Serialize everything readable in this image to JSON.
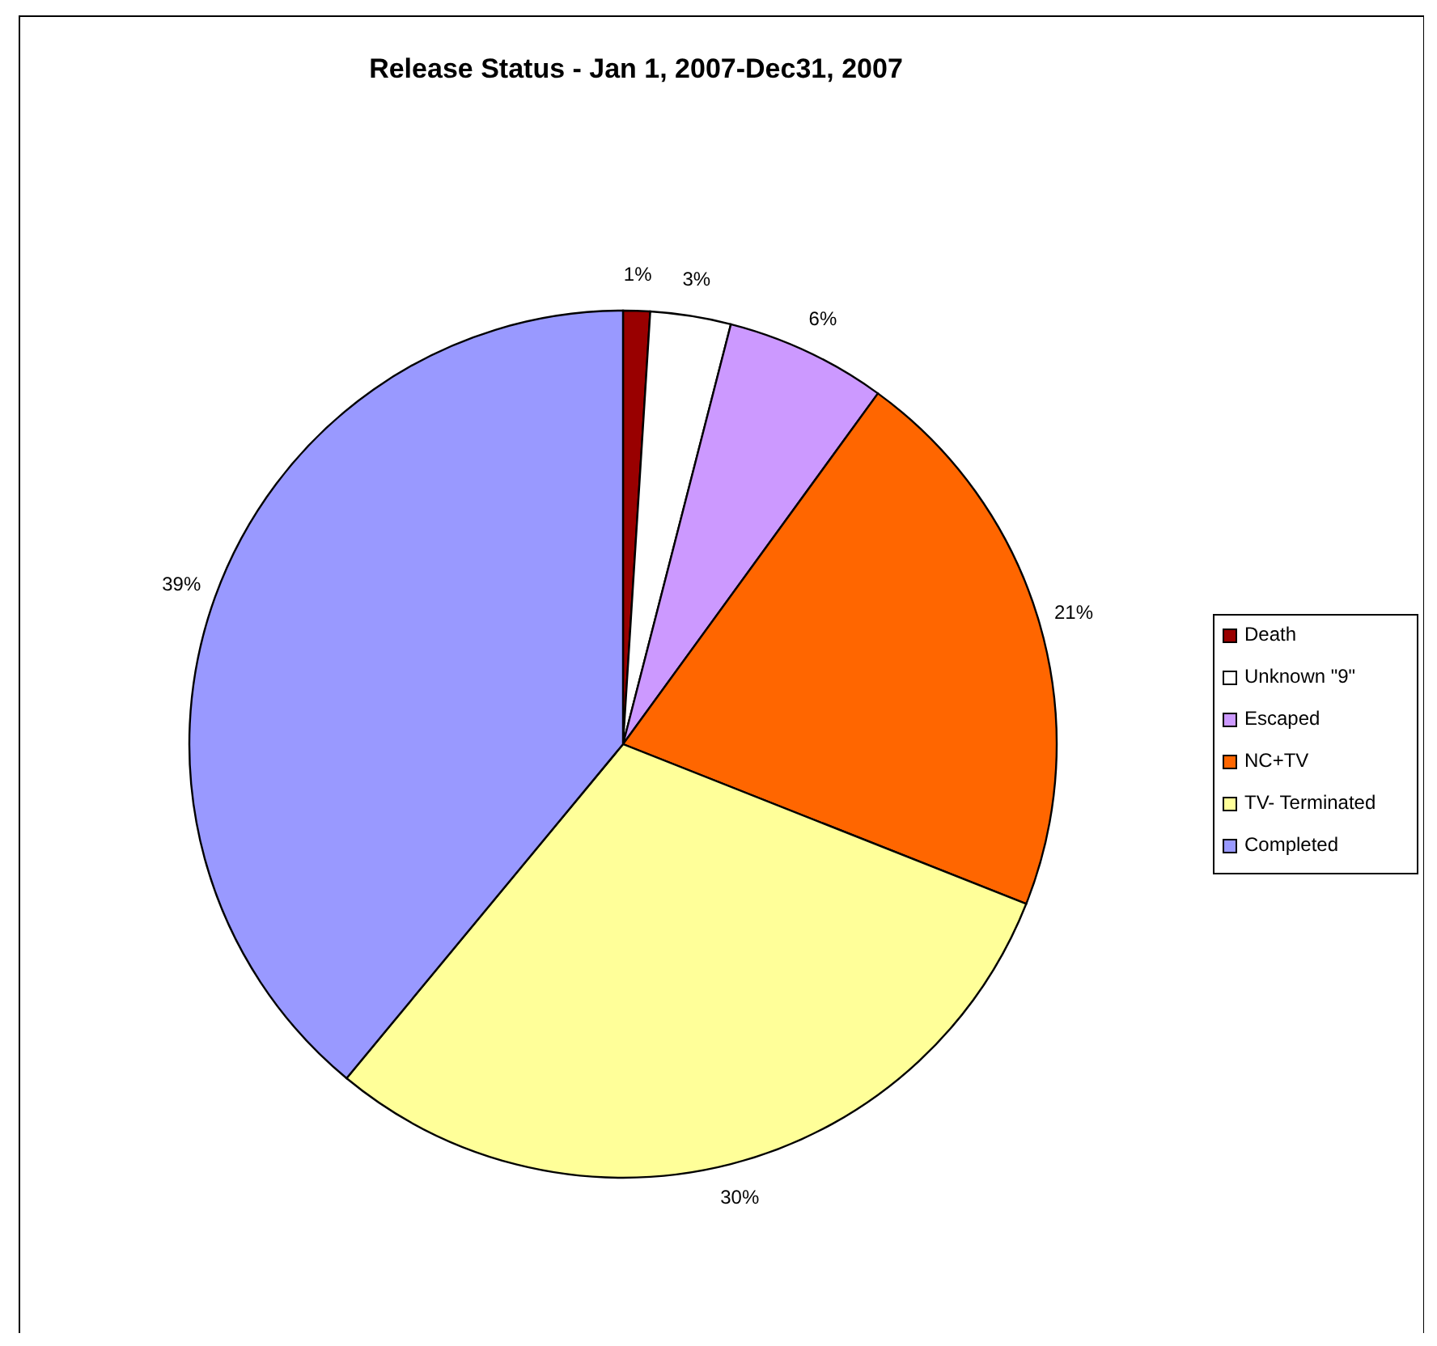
{
  "chart_data": {
    "type": "pie",
    "title": "Release Status - Jan 1, 2007-Dec31, 2007",
    "categories": [
      "Death",
      "Unknown \"9\"",
      "Escaped",
      "NC+TV",
      "TV- Terminated",
      "Completed"
    ],
    "values": [
      1,
      3,
      6,
      21,
      30,
      39
    ],
    "value_labels": [
      "1%",
      "3%",
      "6%",
      "21%",
      "30%",
      "39%"
    ],
    "colors": [
      "#990000",
      "#ffffff",
      "#cc99ff",
      "#ff6600",
      "#ffff99",
      "#9999ff"
    ],
    "legend": "right"
  }
}
